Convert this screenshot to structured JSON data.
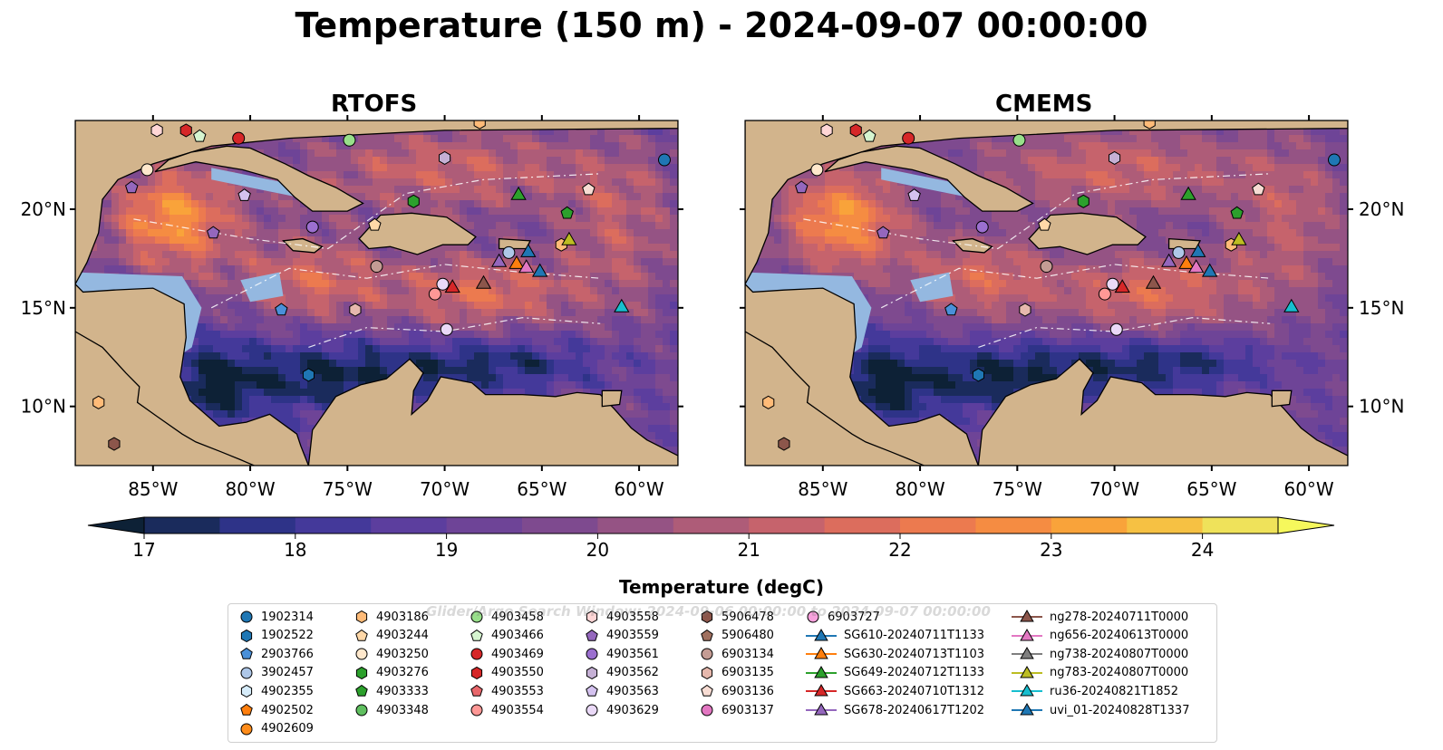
{
  "figure": {
    "title": "Temperature (150 m) - 2024-09-07 00:00:00",
    "watermark": "Glider/Argo Search Window: 2024-09-06 00:00:00 to 2024-09-07 00:00:00"
  },
  "chart_data": {
    "type": "heatmap",
    "panels": [
      {
        "title": "RTOFS"
      },
      {
        "title": "CMEMS"
      }
    ],
    "x_ticks": [
      "85°W",
      "80°W",
      "75°W",
      "70°W",
      "65°W",
      "60°W"
    ],
    "x_tick_values": [
      -85,
      -80,
      -75,
      -70,
      -65,
      -60
    ],
    "y_ticks": [
      "20°N",
      "15°N",
      "10°N"
    ],
    "y_tick_values": [
      20,
      15,
      10
    ],
    "xlim": [
      -89,
      -58
    ],
    "ylim": [
      7,
      24.5
    ],
    "colorbar": {
      "label": "Temperature (degC)",
      "ticks": [
        "17",
        "18",
        "19",
        "20",
        "21",
        "22",
        "23",
        "24"
      ],
      "range": [
        17,
        24.5
      ],
      "step": 0.5,
      "colors": [
        "#0d2136",
        "#1a2b5c",
        "#2e3388",
        "#44399a",
        "#5c3e9e",
        "#6e4497",
        "#7e4a8f",
        "#955384",
        "#ae5c78",
        "#c6636c",
        "#dc6d5d",
        "#ec7a4f",
        "#f58c42",
        "#f9a33a",
        "#f6c143",
        "#efe25a",
        "#f6f85c"
      ]
    },
    "land_color": "#d2b48c",
    "shallow_water_color": "#94b8e0",
    "legend": {
      "columns": [
        [
          {
            "label": "1902314",
            "marker": "circle",
            "color": "#1f77b4"
          },
          {
            "label": "1902522",
            "marker": "hexagon",
            "color": "#1f77b4"
          },
          {
            "label": "2903766",
            "marker": "pentagon",
            "color": "#4a90d9"
          },
          {
            "label": "3902457",
            "marker": "circle",
            "color": "#aec7e8"
          },
          {
            "label": "4902355",
            "marker": "hexagon",
            "color": "#d6ecfa"
          },
          {
            "label": "4902502",
            "marker": "pentagon",
            "color": "#ff7f0e"
          },
          {
            "label": "4902609",
            "marker": "circle",
            "color": "#ff8c1a"
          }
        ],
        [
          {
            "label": "4903186",
            "marker": "hexagon",
            "color": "#ffbb78"
          },
          {
            "label": "4903244",
            "marker": "pentagon",
            "color": "#ffd8a8"
          },
          {
            "label": "4903250",
            "marker": "circle",
            "color": "#ffe8cc"
          },
          {
            "label": "4903276",
            "marker": "hexagon",
            "color": "#2ca02c"
          },
          {
            "label": "4903333",
            "marker": "pentagon",
            "color": "#2ca02c"
          },
          {
            "label": "4903348",
            "marker": "circle",
            "color": "#5fbf5f"
          }
        ],
        [
          {
            "label": "4903458",
            "marker": "circle",
            "color": "#98df8a"
          },
          {
            "label": "4903466",
            "marker": "pentagon",
            "color": "#d6f5d0"
          },
          {
            "label": "4903469",
            "marker": "circle",
            "color": "#d62728"
          },
          {
            "label": "4903550",
            "marker": "hexagon",
            "color": "#d62728"
          },
          {
            "label": "4903553",
            "marker": "pentagon",
            "color": "#e8676b"
          },
          {
            "label": "4903554",
            "marker": "circle",
            "color": "#ff9896"
          }
        ],
        [
          {
            "label": "4903558",
            "marker": "hexagon",
            "color": "#ffd6d6"
          },
          {
            "label": "4903559",
            "marker": "pentagon",
            "color": "#9467bd"
          },
          {
            "label": "4903561",
            "marker": "circle",
            "color": "#9b6fcf"
          },
          {
            "label": "4903562",
            "marker": "hexagon",
            "color": "#c5b0d5"
          },
          {
            "label": "4903563",
            "marker": "pentagon",
            "color": "#d4c2ef"
          },
          {
            "label": "4903629",
            "marker": "circle",
            "color": "#ead9f7"
          }
        ],
        [
          {
            "label": "5906478",
            "marker": "hexagon",
            "color": "#8c564b"
          },
          {
            "label": "5906480",
            "marker": "pentagon",
            "color": "#a0705f"
          },
          {
            "label": "6903134",
            "marker": "circle",
            "color": "#c49c94"
          },
          {
            "label": "6903135",
            "marker": "hexagon",
            "color": "#e6b8ad"
          },
          {
            "label": "6903136",
            "marker": "pentagon",
            "color": "#f7dcd3"
          },
          {
            "label": "6903137",
            "marker": "circle",
            "color": "#e377c2"
          }
        ],
        [
          {
            "label": "6903727",
            "marker": "circle",
            "color": "#f7a1dc"
          },
          {
            "label": "SG610-20240711T1133",
            "marker": "triangle",
            "color": "#1f77b4"
          },
          {
            "label": "SG630-20240713T1103",
            "marker": "triangle",
            "color": "#ff7f0e"
          },
          {
            "label": "SG649-20240712T1133",
            "marker": "triangle",
            "color": "#2ca02c"
          },
          {
            "label": "SG663-20240710T1312",
            "marker": "triangle",
            "color": "#d62728"
          },
          {
            "label": "SG678-20240617T1202",
            "marker": "triangle",
            "color": "#9467bd"
          }
        ],
        [
          {
            "label": "ng278-20240711T0000",
            "marker": "triangle",
            "color": "#8c564b"
          },
          {
            "label": "ng656-20240613T0000",
            "marker": "triangle",
            "color": "#e377c2"
          },
          {
            "label": "ng738-20240807T0000",
            "marker": "triangle",
            "color": "#7f7f7f"
          },
          {
            "label": "ng783-20240807T0000",
            "marker": "triangle",
            "color": "#bcbd22"
          },
          {
            "label": "ru36-20240821T1852",
            "marker": "triangle",
            "color": "#17becf"
          },
          {
            "label": "uvi_01-20240828T1337",
            "marker": "triangle",
            "color": "#1f77b4"
          }
        ]
      ]
    },
    "platforms": [
      {
        "name": "1902314",
        "lon": -58.7,
        "lat": 22.5
      },
      {
        "name": "4903458",
        "lon": -74.9,
        "lat": 23.5
      },
      {
        "name": "4903469",
        "lon": -80.6,
        "lat": 23.6
      },
      {
        "name": "4903466",
        "lon": -82.6,
        "lat": 23.7
      },
      {
        "name": "4903558",
        "lon": -84.8,
        "lat": 24.0
      },
      {
        "name": "4903550",
        "lon": -83.3,
        "lat": 24.0
      },
      {
        "name": "4903186",
        "lon": -68.2,
        "lat": 24.4
      },
      {
        "name": "4903250",
        "lon": -85.3,
        "lat": 22.0
      },
      {
        "name": "4903562",
        "lon": -70.0,
        "lat": 22.6
      },
      {
        "name": "4903559",
        "lon": -86.1,
        "lat": 21.1
      },
      {
        "name": "4903563",
        "lon": -80.3,
        "lat": 20.7
      },
      {
        "name": "4903276",
        "lon": -71.6,
        "lat": 20.4
      },
      {
        "name": "6903136",
        "lon": -62.6,
        "lat": 21.0
      },
      {
        "name": "4903333",
        "lon": -63.7,
        "lat": 19.8
      },
      {
        "name": "4903559",
        "lon": -81.9,
        "lat": 18.8
      },
      {
        "name": "4903561",
        "lon": -76.8,
        "lat": 19.1
      },
      {
        "name": "4903244",
        "lon": -73.6,
        "lat": 19.2
      },
      {
        "name": "4903186",
        "lon": -64.0,
        "lat": 18.2
      },
      {
        "name": "3902457",
        "lon": -66.7,
        "lat": 17.8
      },
      {
        "name": "6903134",
        "lon": -73.5,
        "lat": 17.1
      },
      {
        "name": "4903629",
        "lon": -70.1,
        "lat": 16.2
      },
      {
        "name": "4903554",
        "lon": -70.5,
        "lat": 15.7
      },
      {
        "name": "2903766",
        "lon": -78.4,
        "lat": 14.9
      },
      {
        "name": "6903135",
        "lon": -74.6,
        "lat": 14.9
      },
      {
        "name": "4903629",
        "lon": -69.9,
        "lat": 13.9
      },
      {
        "name": "1902522",
        "lon": -77.0,
        "lat": 11.6
      },
      {
        "name": "4903186",
        "lon": -87.8,
        "lat": 10.2
      },
      {
        "name": "5906478",
        "lon": -87.0,
        "lat": 8.1
      }
    ],
    "gliders": [
      {
        "name": "SG649-20240712T1133",
        "lon": -66.2,
        "lat": 20.7
      },
      {
        "name": "ng783-20240807T0000",
        "lon": -63.6,
        "lat": 18.4
      },
      {
        "name": "SG630-20240713T1103",
        "lon": -66.3,
        "lat": 17.2
      },
      {
        "name": "SG678-20240617T1202",
        "lon": -67.2,
        "lat": 17.3
      },
      {
        "name": "ng656-20240613T0000",
        "lon": -65.8,
        "lat": 17.0
      },
      {
        "name": "SG610-20240711T1133",
        "lon": -65.7,
        "lat": 17.8
      },
      {
        "name": "uvi_01-20240828T1337",
        "lon": -65.1,
        "lat": 16.8
      },
      {
        "name": "ng278-20240711T0000",
        "lon": -68.0,
        "lat": 16.2
      },
      {
        "name": "SG663-20240710T1312",
        "lon": -69.6,
        "lat": 16.0
      },
      {
        "name": "ru36-20240821T1852",
        "lon": -60.9,
        "lat": 15.0
      }
    ]
  }
}
